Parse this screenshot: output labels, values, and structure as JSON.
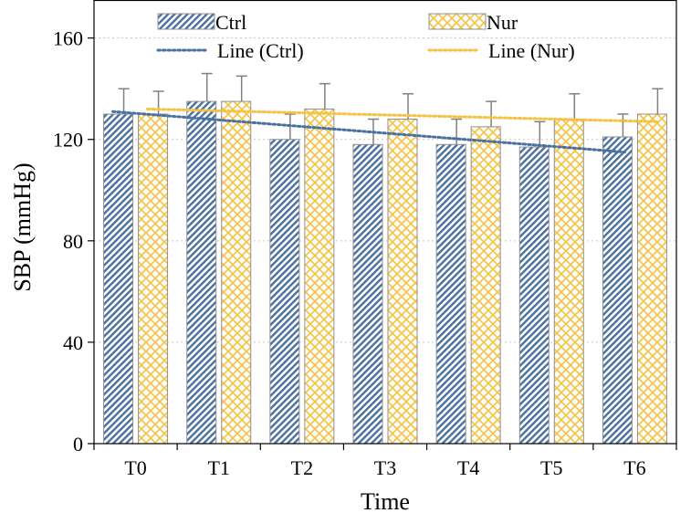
{
  "chart_data": {
    "type": "bar",
    "title": "",
    "xlabel": "Time",
    "ylabel": "SBP (mmHg)",
    "categories": [
      "T0",
      "T1",
      "T2",
      "T3",
      "T4",
      "T5",
      "T6"
    ],
    "ylim": [
      0,
      175
    ],
    "yticks": [
      0,
      40,
      80,
      120,
      160
    ],
    "grid": "horizontal-dotted",
    "legend_position": "top",
    "series": [
      {
        "name": "Ctrl",
        "values": [
          130,
          135,
          120,
          118,
          118,
          117,
          121
        ],
        "errors": [
          10,
          11,
          10,
          10,
          10,
          10,
          9
        ],
        "color": "#4a70a0",
        "pattern": "diagonal-stripes"
      },
      {
        "name": "Nur",
        "values": [
          130,
          135,
          132,
          128,
          125,
          128,
          130
        ],
        "errors": [
          9,
          10,
          10,
          10,
          10,
          10,
          10
        ],
        "color": "#f5c242",
        "pattern": "diamond-lattice"
      }
    ],
    "trendlines": [
      {
        "name": "Line (Ctrl)",
        "start": 131,
        "end": 115,
        "color": "#4a70a0"
      },
      {
        "name": "Line (Nur)",
        "start": 132,
        "end": 127,
        "color": "#f5c242"
      }
    ]
  }
}
